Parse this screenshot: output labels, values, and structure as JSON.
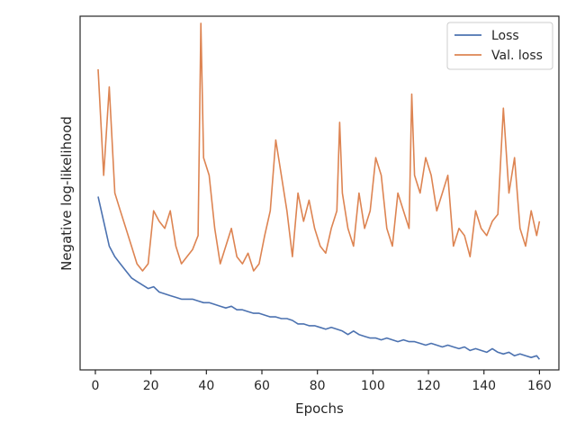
{
  "chart_data": {
    "type": "line",
    "xlabel": "Epochs",
    "ylabel": "Negative log-likelihood",
    "xlim": [
      -5.5,
      167
    ],
    "ylim": [
      0,
      1
    ],
    "xticks": [
      0,
      20,
      40,
      60,
      80,
      100,
      120,
      140,
      160
    ],
    "xtick_labels": [
      "0",
      "20",
      "40",
      "60",
      "80",
      "100",
      "120",
      "140",
      "160"
    ],
    "y_tick_labels_shown": false,
    "grid": false,
    "legend_position": "top-right",
    "series": [
      {
        "name": "Loss",
        "color": "#4c72b0",
        "x": [
          1,
          3,
          5,
          7,
          9,
          11,
          13,
          15,
          17,
          19,
          21,
          23,
          25,
          27,
          29,
          31,
          33,
          35,
          37,
          39,
          41,
          43,
          45,
          47,
          49,
          51,
          53,
          55,
          57,
          59,
          61,
          63,
          65,
          67,
          69,
          71,
          73,
          75,
          77,
          79,
          81,
          83,
          85,
          87,
          89,
          91,
          93,
          95,
          97,
          99,
          101,
          103,
          105,
          107,
          109,
          111,
          113,
          115,
          117,
          119,
          121,
          123,
          125,
          127,
          129,
          131,
          133,
          135,
          137,
          139,
          141,
          143,
          145,
          147,
          149,
          151,
          153,
          155,
          157,
          159,
          160
        ],
        "y": [
          0.49,
          0.42,
          0.35,
          0.32,
          0.3,
          0.28,
          0.26,
          0.25,
          0.24,
          0.23,
          0.235,
          0.22,
          0.215,
          0.21,
          0.205,
          0.2,
          0.2,
          0.2,
          0.195,
          0.19,
          0.19,
          0.185,
          0.18,
          0.175,
          0.18,
          0.17,
          0.17,
          0.165,
          0.16,
          0.16,
          0.155,
          0.15,
          0.15,
          0.145,
          0.145,
          0.14,
          0.13,
          0.13,
          0.125,
          0.125,
          0.12,
          0.115,
          0.12,
          0.115,
          0.11,
          0.1,
          0.11,
          0.1,
          0.095,
          0.09,
          0.09,
          0.085,
          0.09,
          0.085,
          0.08,
          0.085,
          0.08,
          0.08,
          0.075,
          0.07,
          0.075,
          0.07,
          0.065,
          0.07,
          0.065,
          0.06,
          0.065,
          0.055,
          0.06,
          0.055,
          0.05,
          0.06,
          0.05,
          0.045,
          0.05,
          0.04,
          0.045,
          0.04,
          0.035,
          0.04,
          0.03
        ]
      },
      {
        "name": "Val. loss",
        "color": "#dd8452",
        "x": [
          1,
          3,
          5,
          7,
          9,
          11,
          13,
          15,
          17,
          19,
          21,
          23,
          25,
          27,
          29,
          31,
          33,
          35,
          37,
          38,
          39,
          41,
          43,
          45,
          47,
          49,
          51,
          53,
          55,
          57,
          59,
          61,
          63,
          65,
          67,
          69,
          71,
          73,
          75,
          77,
          79,
          81,
          83,
          85,
          87,
          88,
          89,
          91,
          93,
          95,
          97,
          99,
          101,
          103,
          105,
          107,
          109,
          111,
          113,
          114,
          115,
          117,
          119,
          121,
          123,
          125,
          127,
          129,
          131,
          133,
          135,
          137,
          139,
          141,
          143,
          145,
          147,
          149,
          151,
          153,
          155,
          157,
          159,
          160
        ],
        "y": [
          0.85,
          0.55,
          0.8,
          0.5,
          0.45,
          0.4,
          0.35,
          0.3,
          0.28,
          0.3,
          0.45,
          0.42,
          0.4,
          0.45,
          0.35,
          0.3,
          0.32,
          0.34,
          0.38,
          0.98,
          0.6,
          0.55,
          0.4,
          0.3,
          0.35,
          0.4,
          0.32,
          0.3,
          0.33,
          0.28,
          0.3,
          0.38,
          0.45,
          0.65,
          0.55,
          0.45,
          0.32,
          0.5,
          0.42,
          0.48,
          0.4,
          0.35,
          0.33,
          0.4,
          0.45,
          0.7,
          0.5,
          0.4,
          0.35,
          0.5,
          0.4,
          0.45,
          0.6,
          0.55,
          0.4,
          0.35,
          0.5,
          0.45,
          0.4,
          0.78,
          0.55,
          0.5,
          0.6,
          0.55,
          0.45,
          0.5,
          0.55,
          0.35,
          0.4,
          0.38,
          0.32,
          0.45,
          0.4,
          0.38,
          0.42,
          0.44,
          0.74,
          0.5,
          0.6,
          0.4,
          0.35,
          0.45,
          0.38,
          0.42
        ]
      }
    ]
  }
}
